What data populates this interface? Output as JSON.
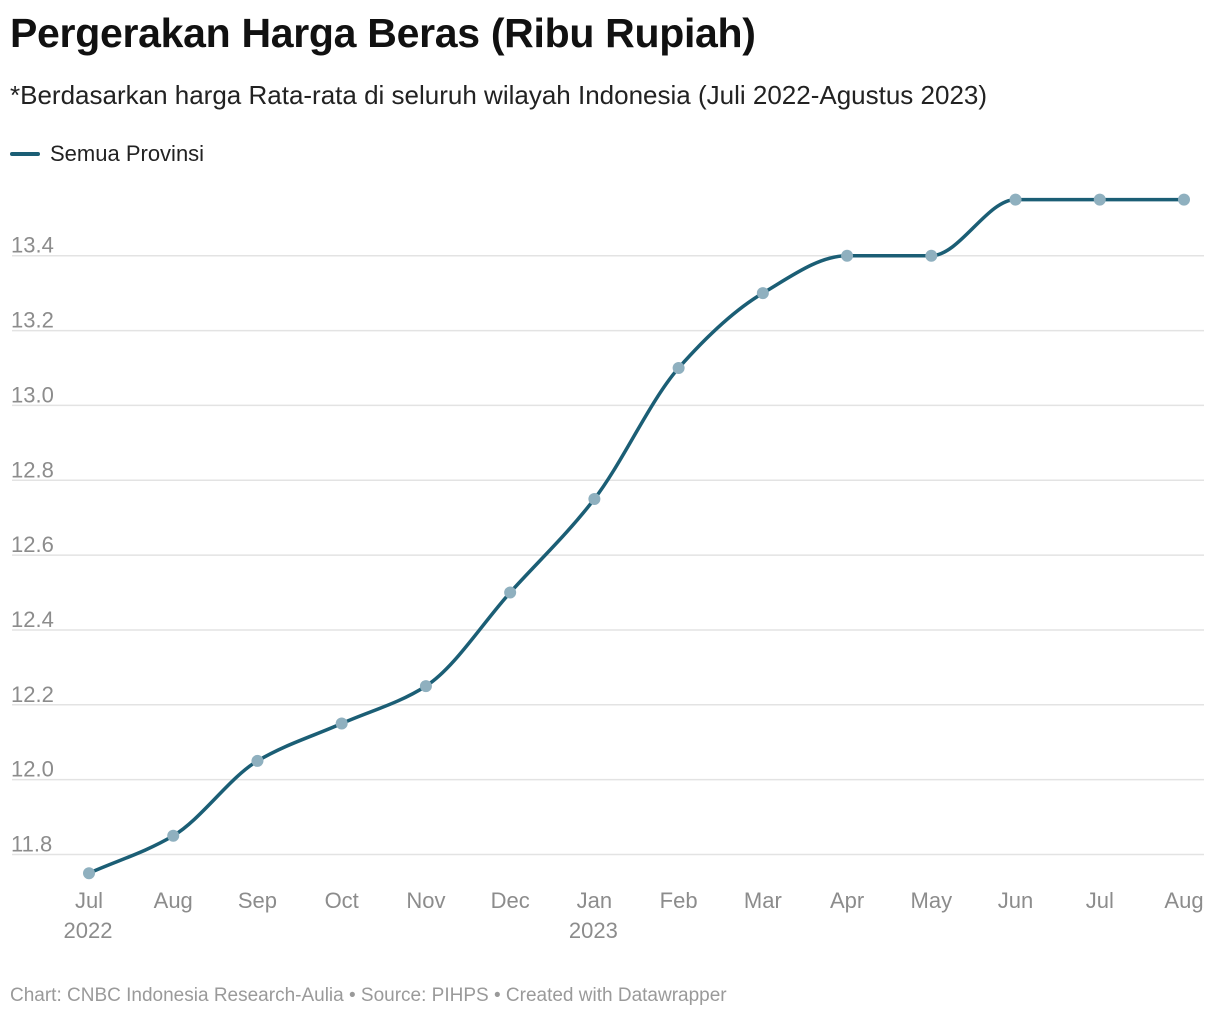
{
  "header": {
    "title": "Pergerakan Harga Beras (Ribu Rupiah)",
    "subtitle": "*Berdasarkan harga Rata-rata di seluruh wilayah Indonesia (Juli 2022-Agustus 2023)"
  },
  "legend": {
    "label": "Semua Provinsi",
    "color": "#1b5e75"
  },
  "chart_data": {
    "type": "line",
    "title": "Pergerakan Harga Beras (Ribu Rupiah)",
    "subtitle": "*Berdasarkan harga Rata-rata di seluruh wilayah Indonesia (Juli 2022-Agustus 2023)",
    "categories": [
      "Jul 2022",
      "Aug 2022",
      "Sep 2022",
      "Oct 2022",
      "Nov 2022",
      "Dec 2022",
      "Jan 2023",
      "Feb 2023",
      "Mar 2023",
      "Apr 2023",
      "May 2023",
      "Jun 2023",
      "Jul 2023",
      "Aug 2023"
    ],
    "x_tick_labels": [
      {
        "month": "Jul",
        "year": "2022"
      },
      {
        "month": "Aug",
        "year": ""
      },
      {
        "month": "Sep",
        "year": ""
      },
      {
        "month": "Oct",
        "year": ""
      },
      {
        "month": "Nov",
        "year": ""
      },
      {
        "month": "Dec",
        "year": ""
      },
      {
        "month": "Jan",
        "year": "2023"
      },
      {
        "month": "Feb",
        "year": ""
      },
      {
        "month": "Mar",
        "year": ""
      },
      {
        "month": "Apr",
        "year": ""
      },
      {
        "month": "May",
        "year": ""
      },
      {
        "month": "Jun",
        "year": ""
      },
      {
        "month": "Jul",
        "year": ""
      },
      {
        "month": "Aug",
        "year": ""
      }
    ],
    "series": [
      {
        "name": "Semua Provinsi",
        "color": "#1b5e75",
        "values": [
          11.75,
          11.85,
          12.05,
          12.15,
          12.25,
          12.5,
          12.75,
          13.1,
          13.3,
          13.4,
          13.4,
          13.55,
          13.55,
          13.55
        ]
      }
    ],
    "y_ticks": [
      "11.8",
      "12.0",
      "12.2",
      "12.4",
      "12.6",
      "12.8",
      "13.0",
      "13.2",
      "13.4"
    ],
    "ylim": [
      11.75,
      13.55
    ],
    "grid": true,
    "legend_position": "top-left",
    "marker_color": "#8fb0bf"
  },
  "footer": {
    "credit": "Chart: CNBC Indonesia Research-Aulia • Source: PIHPS • Created with Datawrapper"
  }
}
